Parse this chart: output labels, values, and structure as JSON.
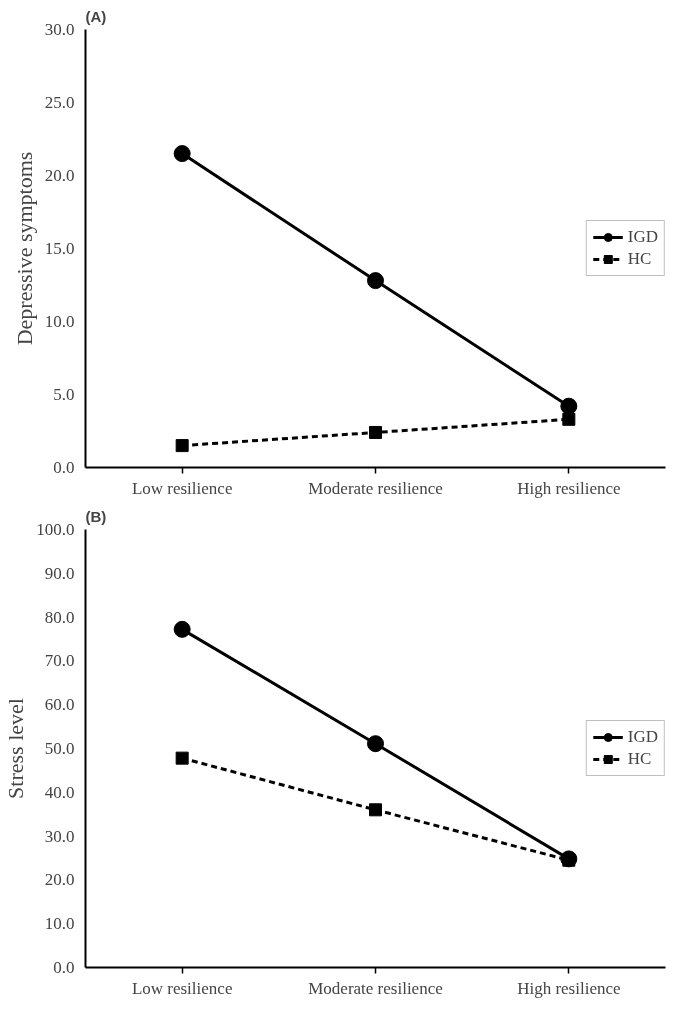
{
  "chart_data": [
    {
      "type": "line",
      "title": "(A)",
      "ylabel": "Depressive symptoms",
      "categories": [
        "Low resilience",
        "Moderate resilience",
        "High resilience"
      ],
      "ylim": [
        0,
        30
      ],
      "yticks": [
        {
          "value": 0,
          "label": "0.0"
        },
        {
          "value": 5,
          "label": "5.0"
        },
        {
          "value": 10,
          "label": "10.0"
        },
        {
          "value": 15,
          "label": "15.0"
        },
        {
          "value": 20,
          "label": "20.0"
        },
        {
          "value": 25,
          "label": "25.0"
        },
        {
          "value": 30,
          "label": "30.0"
        }
      ],
      "grid": false,
      "legend": "right",
      "series": [
        {
          "name": "IGD",
          "color": "#000000",
          "marker": "circle",
          "line_style": "solid",
          "values": [
            21.5,
            12.8,
            4.2
          ]
        },
        {
          "name": "HC",
          "color": "#000000",
          "marker": "square",
          "line_style": "dashed",
          "values": [
            1.5,
            2.4,
            3.3
          ]
        }
      ]
    },
    {
      "type": "line",
      "title": "(B)",
      "ylabel": "Stress level",
      "categories": [
        "Low resilience",
        "Moderate resilience",
        "High resilience"
      ],
      "ylim": [
        0,
        100
      ],
      "yticks": [
        {
          "value": 0,
          "label": "0.0"
        },
        {
          "value": 10,
          "label": "10.0"
        },
        {
          "value": 20,
          "label": "20.0"
        },
        {
          "value": 30,
          "label": "30.0"
        },
        {
          "value": 40,
          "label": "40.0"
        },
        {
          "value": 50,
          "label": "50.0"
        },
        {
          "value": 60,
          "label": "60.0"
        },
        {
          "value": 70,
          "label": "70.0"
        },
        {
          "value": 80,
          "label": "80.0"
        },
        {
          "value": 90,
          "label": "90.0"
        },
        {
          "value": 100,
          "label": "100.0"
        }
      ],
      "grid": false,
      "legend": "right",
      "series": [
        {
          "name": "IGD",
          "color": "#000000",
          "marker": "circle",
          "line_style": "solid",
          "values": [
            77.2,
            51.1,
            24.8
          ]
        },
        {
          "name": "HC",
          "color": "#000000",
          "marker": "square",
          "line_style": "dashed",
          "values": [
            47.8,
            36.0,
            24.5
          ]
        }
      ]
    }
  ]
}
